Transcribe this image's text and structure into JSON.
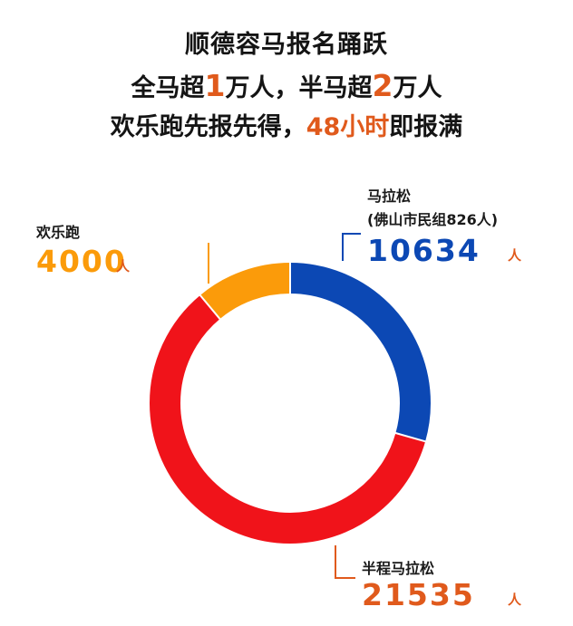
{
  "headline": {
    "line1": "顺德容马报名踊跃",
    "line2": {
      "a": "全马超",
      "b": "1",
      "c": "万人，半马超",
      "d": "2",
      "e": "万人"
    },
    "line3": {
      "a": "欢乐跑先报先得，",
      "b": "48小时",
      "c": "即报满"
    }
  },
  "colors": {
    "marathon": "#0c48b4",
    "half": "#f0131a",
    "fun": "#fb9b0a",
    "accent": "#e05a1c"
  },
  "chart_data": {
    "type": "pie",
    "donut": true,
    "slices": [
      {
        "name": "马拉松",
        "sub": "(佛山市民组826人)",
        "value": 10634,
        "unit": "人",
        "color": "#0c48b4"
      },
      {
        "name": "半程马拉松",
        "value": 21535,
        "unit": "人",
        "color": "#f0131a"
      },
      {
        "name": "欢乐跑",
        "value": 4000,
        "unit": "人",
        "color": "#fb9b0a"
      }
    ]
  }
}
